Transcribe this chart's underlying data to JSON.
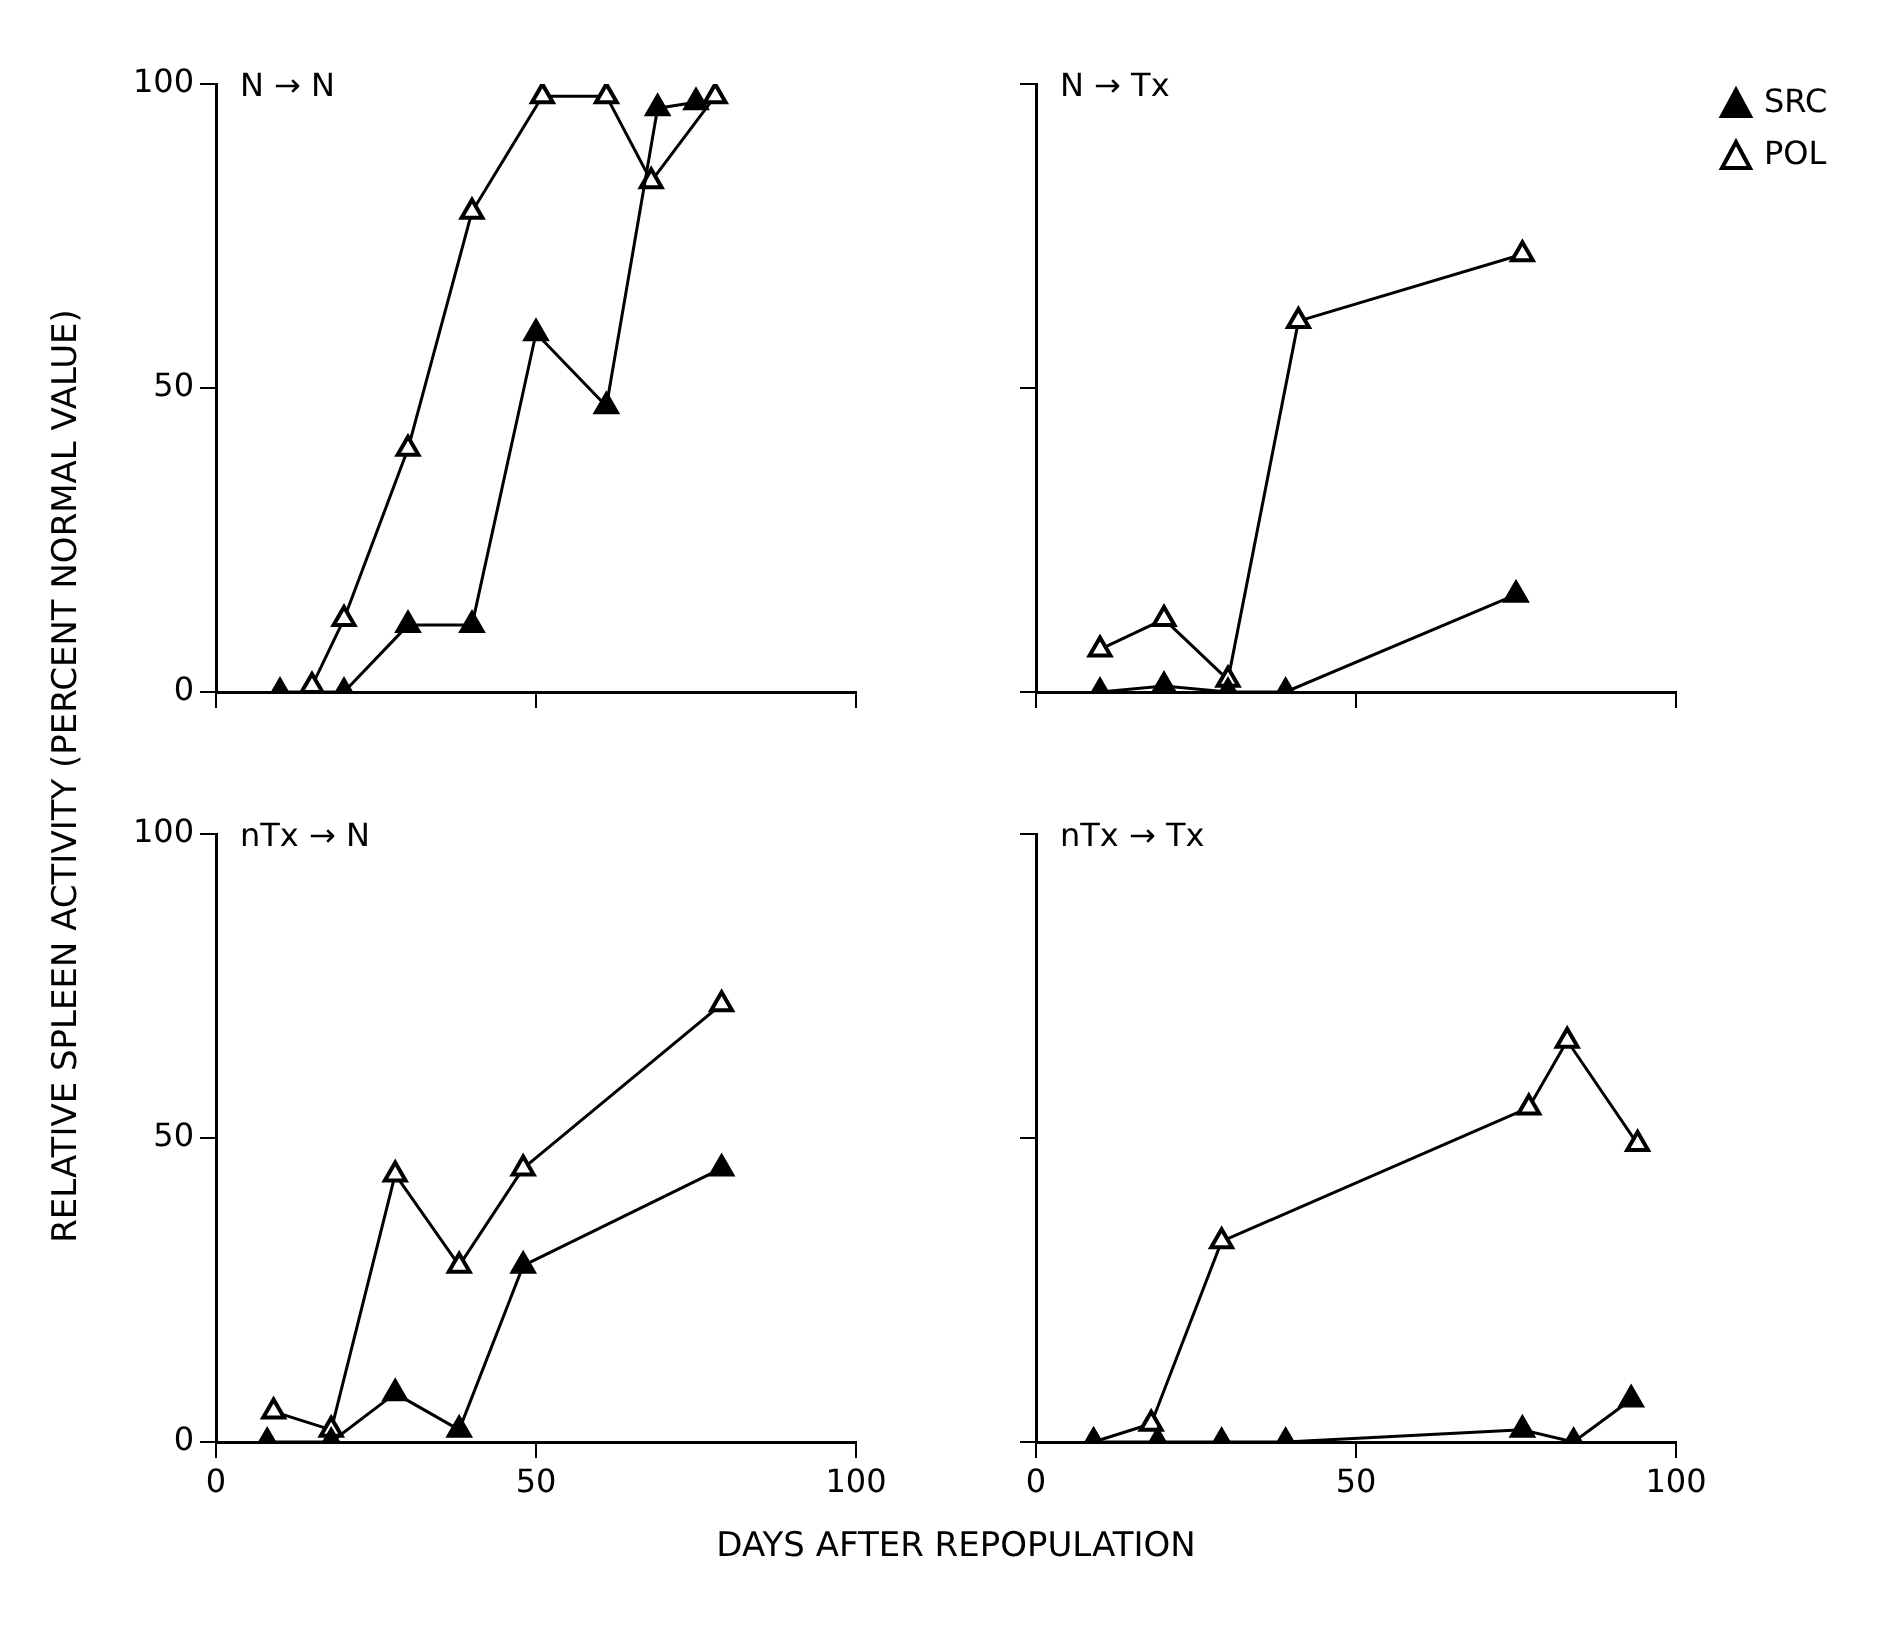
{
  "chart_data": [
    {
      "type": "line",
      "title": "N → N",
      "ylabel": "RELATIVE SPLEEN ACTIVITY (PERCENT NORMAL VALUE)",
      "xlim": [
        0,
        100
      ],
      "xticks": [
        0,
        50,
        100
      ],
      "ylim": [
        0,
        100
      ],
      "yticks": [
        0,
        50,
        100
      ],
      "tick_labels": "y",
      "marker": "triangle",
      "grid": false,
      "series": [
        {
          "color": "#000000",
          "x": [
            10,
            20,
            30,
            40,
            50,
            61,
            69,
            75
          ],
          "values": [
            0,
            0,
            11,
            11,
            59,
            47,
            96,
            97
          ]
        },
        {
          "color": "#000000",
          "x": [
            15,
            20,
            30,
            40,
            51,
            61,
            68,
            78
          ],
          "values": [
            1,
            12,
            40,
            79,
            98,
            98,
            84,
            98
          ]
        }
      ]
    },
    {
      "type": "line",
      "title": "N → Tx",
      "xlim": [
        0,
        100
      ],
      "xticks": [
        0,
        50,
        100
      ],
      "ylim": [
        0,
        100
      ],
      "yticks": [
        0,
        50,
        100
      ],
      "tick_labels": false,
      "marker": "triangle",
      "grid": false,
      "legend": "top right",
      "series": [
        {
          "name": "SRC",
          "color": "#000000",
          "x": [
            10,
            20,
            30,
            39,
            75
          ],
          "values": [
            0,
            1,
            0,
            0,
            16
          ]
        },
        {
          "name": "POL",
          "color": "#000000",
          "x": [
            10,
            20,
            30,
            41,
            76
          ],
          "values": [
            7,
            12,
            2,
            61,
            72
          ]
        }
      ]
    },
    {
      "type": "line",
      "title": "nTx → N",
      "xlim": [
        0,
        100
      ],
      "xticks": [
        0,
        50,
        100
      ],
      "ylim": [
        0,
        100
      ],
      "yticks": [
        0,
        50,
        100
      ],
      "marker": "triangle",
      "grid": false,
      "series": [
        {
          "color": "#000000",
          "x": [
            8,
            18,
            28,
            38,
            48,
            79
          ],
          "values": [
            0,
            0,
            8,
            2,
            29,
            45
          ]
        },
        {
          "color": "#000000",
          "x": [
            9,
            18,
            28,
            38,
            48,
            79
          ],
          "values": [
            5,
            2,
            44,
            29,
            45,
            72
          ]
        }
      ]
    },
    {
      "type": "line",
      "title": "nTx → Tx",
      "xlabel": "DAYS AFTER REPOPULATION",
      "xlim": [
        0,
        100
      ],
      "xticks": [
        0,
        50,
        100
      ],
      "ylim": [
        0,
        100
      ],
      "yticks": [
        0,
        50,
        100
      ],
      "tick_labels": "x",
      "marker": "triangle",
      "grid": false,
      "series": [
        {
          "color": "#000000",
          "x": [
            9,
            19,
            29,
            39,
            76,
            84,
            93
          ],
          "values": [
            0,
            0,
            0,
            0,
            2,
            0,
            7
          ]
        },
        {
          "color": "#000000",
          "x": [
            9,
            18,
            29,
            77,
            83,
            94
          ],
          "values": [
            0,
            3,
            33,
            55,
            66,
            49
          ]
        }
      ]
    }
  ]
}
